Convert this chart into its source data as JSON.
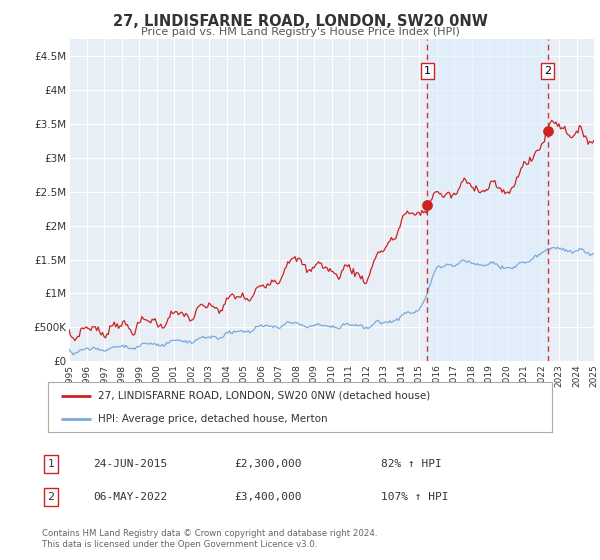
{
  "title": "27, LINDISFARNE ROAD, LONDON, SW20 0NW",
  "subtitle": "Price paid vs. HM Land Registry's House Price Index (HPI)",
  "legend_line1": "27, LINDISFARNE ROAD, LONDON, SW20 0NW (detached house)",
  "legend_line2": "HPI: Average price, detached house, Merton",
  "footnote1": "Contains HM Land Registry data © Crown copyright and database right 2024.",
  "footnote2": "This data is licensed under the Open Government Licence v3.0.",
  "annotation1_label": "1",
  "annotation1_date": "24-JUN-2015",
  "annotation1_price": "£2,300,000",
  "annotation1_hpi": "82% ↑ HPI",
  "annotation2_label": "2",
  "annotation2_date": "06-MAY-2022",
  "annotation2_price": "£3,400,000",
  "annotation2_hpi": "107% ↑ HPI",
  "sale1_year": 2015.48,
  "sale1_value": 2300000,
  "sale2_year": 2022.35,
  "sale2_value": 3400000,
  "vline1_year": 2015.48,
  "vline2_year": 2022.35,
  "red_line_color": "#cc2222",
  "blue_line_color": "#7aaadd",
  "vline_color": "#cc2222",
  "shade_color": "#ddeeff",
  "background_color": "#ffffff",
  "plot_bg_color": "#e8eef5",
  "grid_color": "#ffffff",
  "ylim": [
    0,
    4750000
  ],
  "xlim_left": 1995,
  "xlim_right": 2025,
  "yticks": [
    0,
    500000,
    1000000,
    1500000,
    2000000,
    2500000,
    3000000,
    3500000,
    4000000,
    4500000
  ],
  "ytick_labels": [
    "£0",
    "£500K",
    "£1M",
    "£1.5M",
    "£2M",
    "£2.5M",
    "£3M",
    "£3.5M",
    "£4M",
    "£4.5M"
  ],
  "xticks": [
    1995,
    1996,
    1997,
    1998,
    1999,
    2000,
    2001,
    2002,
    2003,
    2004,
    2005,
    2006,
    2007,
    2008,
    2009,
    2010,
    2011,
    2012,
    2013,
    2014,
    2015,
    2016,
    2017,
    2018,
    2019,
    2020,
    2021,
    2022,
    2023,
    2024,
    2025
  ]
}
